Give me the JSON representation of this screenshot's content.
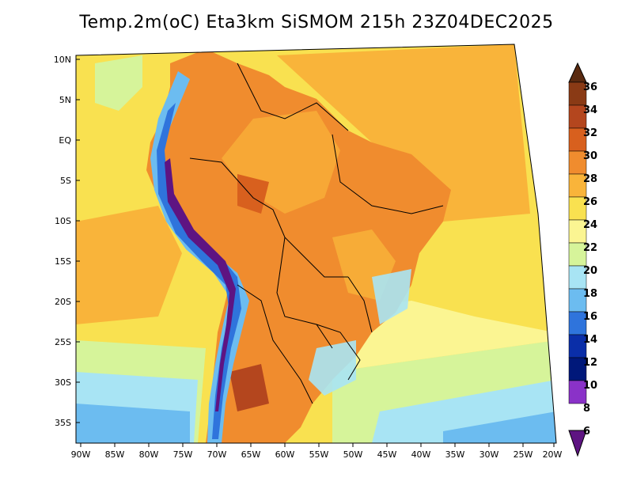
{
  "title": "Temp.2m(oC) Eta3km SiSMOM 215h 23Z04DEC2025",
  "lat_labels": [
    "10N",
    "5N",
    "EQ",
    "5S",
    "10S",
    "15S",
    "20S",
    "25S",
    "30S",
    "35S"
  ],
  "lon_labels": [
    "90W",
    "85W",
    "80W",
    "75W",
    "70W",
    "65W",
    "60W",
    "55W",
    "50W",
    "45W",
    "40W",
    "35W",
    "30W",
    "25W",
    "20W"
  ],
  "colorbar": {
    "labels": [
      "36",
      "34",
      "32",
      "30",
      "28",
      "26",
      "24",
      "22",
      "20",
      "18",
      "16",
      "14",
      "12",
      "10",
      "8",
      "6"
    ],
    "colors": [
      "#5a2a10",
      "#8a3a15",
      "#b4461e",
      "#d8601e",
      "#f08c2e",
      "#f9b43a",
      "#f9e150",
      "#fbf592",
      "#d6f49a",
      "#a8e4f4",
      "#6cbcf0",
      "#2f74dc",
      "#0a2ea8",
      "#00187a",
      "#8a32c8",
      "#5e1482"
    ]
  }
}
